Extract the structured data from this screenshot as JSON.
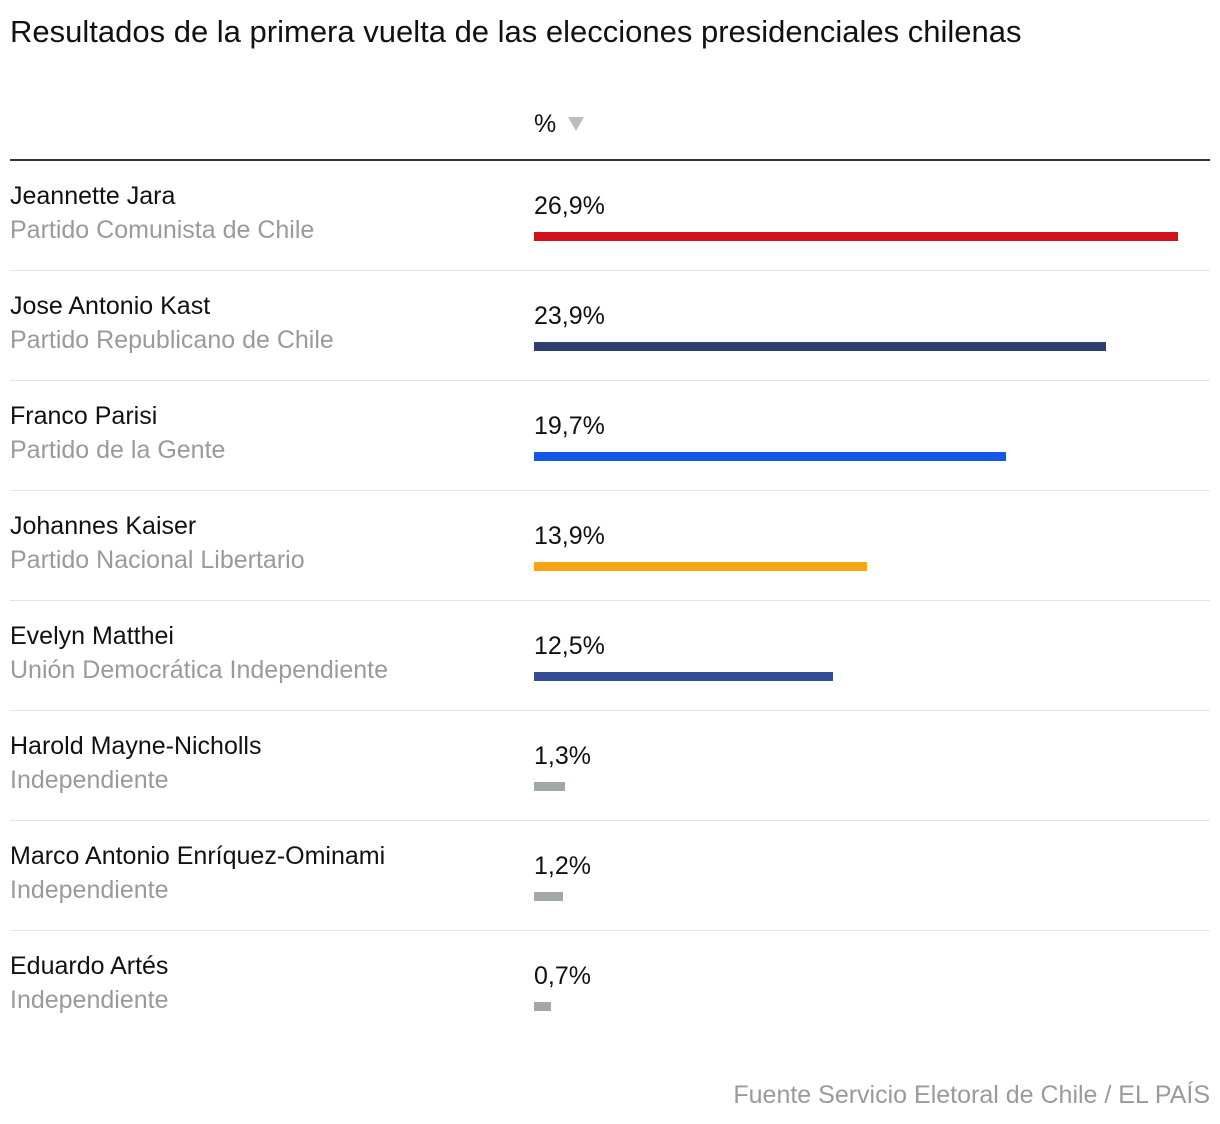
{
  "chart_data": {
    "type": "bar",
    "orientation": "horizontal",
    "title": "Resultados de la primera vuelta de las elecciones presidenciales chilenas",
    "column_header": "%",
    "sort": "descending",
    "source": "Fuente Servicio Eletoral de Chile / EL PAÍS",
    "xlim": [
      0,
      26.9
    ],
    "rows": [
      {
        "name": "Jeannette Jara",
        "party": "Partido Comunista de Chile",
        "value": 26.9,
        "label": "26,9%",
        "color": "#d0101a"
      },
      {
        "name": "Jose Antonio Kast",
        "party": "Partido Republicano de Chile",
        "value": 23.9,
        "label": "23,9%",
        "color": "#2e3f6e"
      },
      {
        "name": "Franco Parisi",
        "party": "Partido de la Gente",
        "value": 19.7,
        "label": "19,7%",
        "color": "#1358e8"
      },
      {
        "name": "Johannes Kaiser",
        "party": "Partido Nacional Libertario",
        "value": 13.9,
        "label": "13,9%",
        "color": "#f6a514"
      },
      {
        "name": "Evelyn Matthei",
        "party": "Unión Democrática Independiente",
        "value": 12.5,
        "label": "12,5%",
        "color": "#354d97"
      },
      {
        "name": "Harold Mayne-Nicholls",
        "party": "Independiente",
        "value": 1.3,
        "label": "1,3%",
        "color": "#a2a7a7"
      },
      {
        "name": "Marco Antonio Enríquez-Ominami",
        "party": "Independiente",
        "value": 1.2,
        "label": "1,2%",
        "color": "#a2a7a7"
      },
      {
        "name": "Eduardo Artés",
        "party": "Independiente",
        "value": 0.7,
        "label": "0,7%",
        "color": "#a2a7a7"
      }
    ]
  }
}
